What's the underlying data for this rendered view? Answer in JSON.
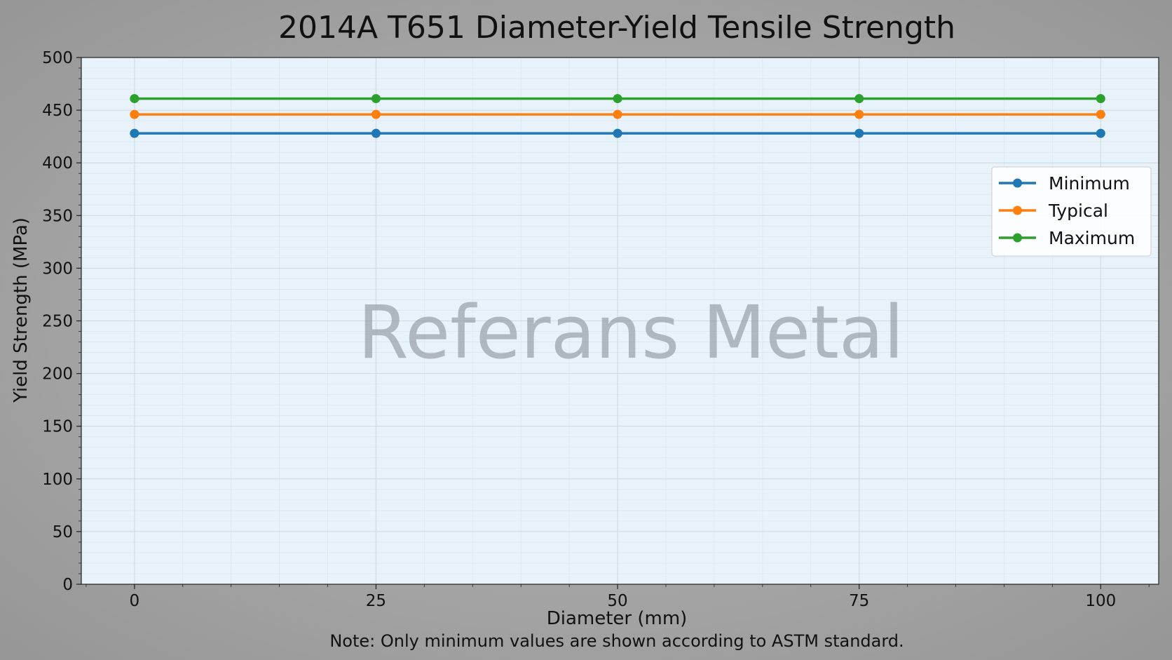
{
  "chart_data": {
    "type": "line",
    "title": "2014A T651 Diameter-Yield Tensile Strength",
    "xlabel": "Diameter (mm)",
    "ylabel": "Yield Strength (MPa)",
    "x": [
      0,
      25,
      50,
      75,
      100
    ],
    "xlim": [
      -5.5,
      106
    ],
    "ylim": [
      0,
      500
    ],
    "xticks": [
      0,
      25,
      50,
      75,
      100
    ],
    "yticks": [
      0,
      50,
      100,
      150,
      200,
      250,
      300,
      350,
      400,
      450,
      500
    ],
    "grid": true,
    "legend_position": "right",
    "series": [
      {
        "name": "Minimum",
        "color": "#1f77b4",
        "values": [
          428,
          428,
          428,
          428,
          428
        ]
      },
      {
        "name": "Typical",
        "color": "#ff7f0e",
        "values": [
          446,
          446,
          446,
          446,
          446
        ]
      },
      {
        "name": "Maximum",
        "color": "#2ca02c",
        "values": [
          461,
          461,
          461,
          461,
          461
        ]
      }
    ],
    "note": "Note: Only minimum values are shown according to ASTM standard.",
    "watermark": "Referans Metal"
  },
  "colors": {
    "plot_background": "#e8f2fa",
    "page_background": "#a3a3a3"
  }
}
